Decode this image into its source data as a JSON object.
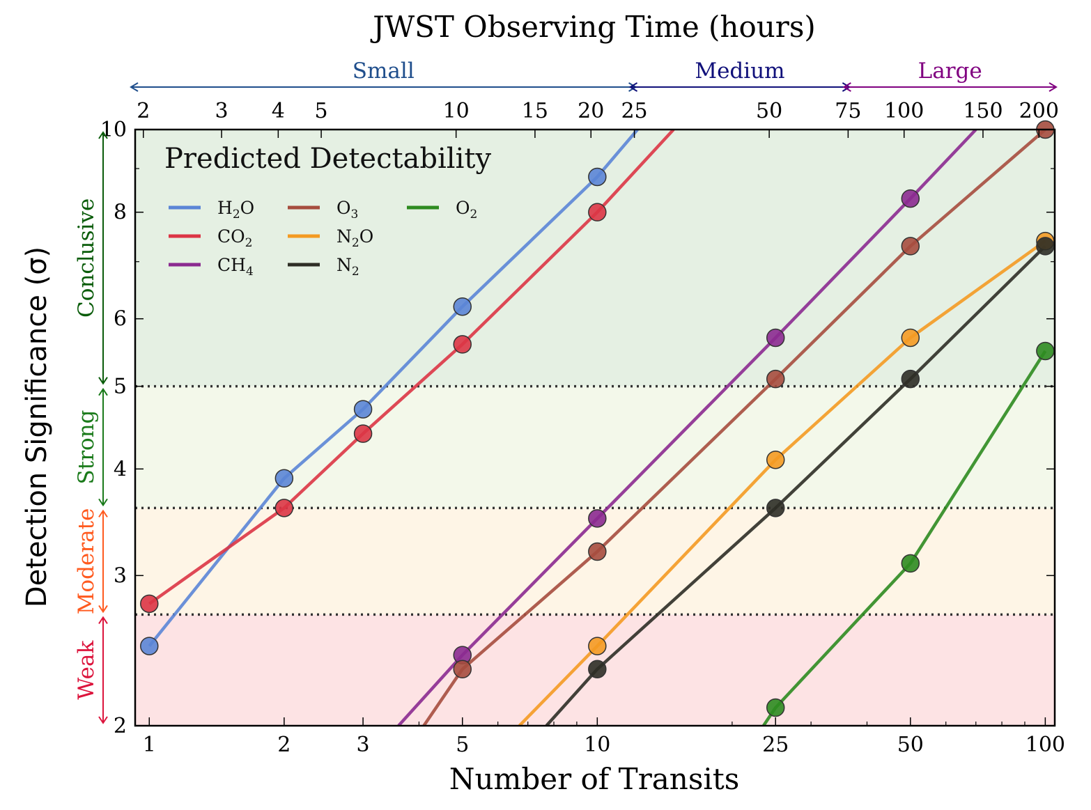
{
  "chart_data": {
    "type": "line",
    "title": "JWST Observing Time (hours)",
    "xlabel": "Number of Transits",
    "ylabel": "Detection Significance (σ)",
    "x_scale": "log",
    "y_scale": "log",
    "xlim": [
      0.93,
      105
    ],
    "ylim": [
      2,
      10
    ],
    "x_ticks": [
      1,
      2,
      3,
      5,
      10,
      25,
      50,
      100
    ],
    "y_ticks": [
      2,
      3,
      4,
      5,
      6,
      8,
      10
    ],
    "top_axis": {
      "label": "JWST Observing Time (hours)",
      "ticks": [
        {
          "label": "2",
          "transits": 0.97
        },
        {
          "label": "3",
          "transits": 1.45
        },
        {
          "label": "4",
          "transits": 1.94
        },
        {
          "label": "5",
          "transits": 2.42
        },
        {
          "label": "10",
          "transits": 4.84
        },
        {
          "label": "15",
          "transits": 7.26
        },
        {
          "label": "20",
          "transits": 9.68
        },
        {
          "label": "25",
          "transits": 12.1
        },
        {
          "label": "50",
          "transits": 24.2
        },
        {
          "label": "75",
          "transits": 36.3
        },
        {
          "label": "100",
          "transits": 48.4
        },
        {
          "label": "150",
          "transits": 72.6
        },
        {
          "label": "200",
          "transits": 96.8
        }
      ],
      "programs": [
        {
          "label": "Small",
          "from_transits": 0.93,
          "to_transits": 12.1,
          "color": "#1f4e8c"
        },
        {
          "label": "Medium",
          "from_transits": 12.1,
          "to_transits": 36.3,
          "color": "#10107a"
        },
        {
          "label": "Large",
          "from_transits": 36.3,
          "to_transits": 105,
          "color": "#800080"
        }
      ]
    },
    "bands": [
      {
        "label": "Weak",
        "from": 2,
        "to": 2.7,
        "fill": "#fde3e4",
        "color": "#dc143c"
      },
      {
        "label": "Moderate",
        "from": 2.7,
        "to": 3.6,
        "fill": "#fef5e6",
        "color": "#ff5a1f"
      },
      {
        "label": "Strong",
        "from": 3.6,
        "to": 5,
        "fill": "#f3f8ea",
        "color": "#1a7a1a"
      },
      {
        "label": "Conclusive",
        "from": 5,
        "to": 10,
        "fill": "#e5f0e3",
        "color": "#0a5c0a"
      }
    ],
    "thresholds": [
      2.7,
      3.6,
      5
    ],
    "legend": {
      "title": "Predicted Detectability",
      "placement": "top-left"
    },
    "series": [
      {
        "name": "H2O",
        "label_html": "H<sub>2</sub>O",
        "color": "#5b85d6",
        "points": [
          [
            1,
            2.48
          ],
          [
            2,
            3.9
          ],
          [
            3,
            4.7
          ],
          [
            5,
            6.2
          ],
          [
            10,
            8.8
          ]
        ],
        "extend_to": [
          12.3,
          10.0
        ]
      },
      {
        "name": "CO2",
        "label_html": "CO<sub>2</sub>",
        "color": "#dc3545",
        "points": [
          [
            1,
            2.78
          ],
          [
            2,
            3.6
          ],
          [
            3,
            4.4
          ],
          [
            5,
            5.6
          ],
          [
            10,
            8.0
          ]
        ],
        "extend_to": [
          14.8,
          10.0
        ]
      },
      {
        "name": "CH4",
        "label_html": "CH<sub>4</sub>",
        "color": "#8b2a90",
        "points": [
          [
            5,
            2.42
          ],
          [
            10,
            3.5
          ],
          [
            25,
            5.7
          ],
          [
            50,
            8.3
          ]
        ],
        "extend_from": [
          3.6,
          2.0
        ],
        "extend_to": [
          70,
          10.0
        ]
      },
      {
        "name": "O3",
        "label_html": "O<sub>3</sub>",
        "color": "#a64d3e",
        "points": [
          [
            5,
            2.33
          ],
          [
            10,
            3.2
          ],
          [
            25,
            5.1
          ],
          [
            50,
            7.3
          ],
          [
            100,
            10.0
          ]
        ],
        "extend_from": [
          4.1,
          2.0
        ]
      },
      {
        "name": "N2O",
        "label_html": "N<sub>2</sub>O",
        "color": "#f49a22",
        "points": [
          [
            10,
            2.48
          ],
          [
            25,
            4.1
          ],
          [
            50,
            5.7
          ],
          [
            100,
            7.4
          ]
        ],
        "extend_from": [
          6.7,
          2.0
        ]
      },
      {
        "name": "N2",
        "label_html": "N<sub>2</sub>",
        "color": "#2e2e26",
        "points": [
          [
            10,
            2.33
          ],
          [
            25,
            3.6
          ],
          [
            50,
            5.1
          ],
          [
            100,
            7.3
          ]
        ],
        "extend_from": [
          7.7,
          2.0
        ]
      },
      {
        "name": "O2",
        "label_html": "O<sub>2</sub>",
        "color": "#2e8b20",
        "points": [
          [
            25,
            2.1
          ],
          [
            50,
            3.1
          ],
          [
            100,
            5.5
          ]
        ],
        "extend_from": [
          23.5,
          2.0
        ]
      }
    ]
  }
}
